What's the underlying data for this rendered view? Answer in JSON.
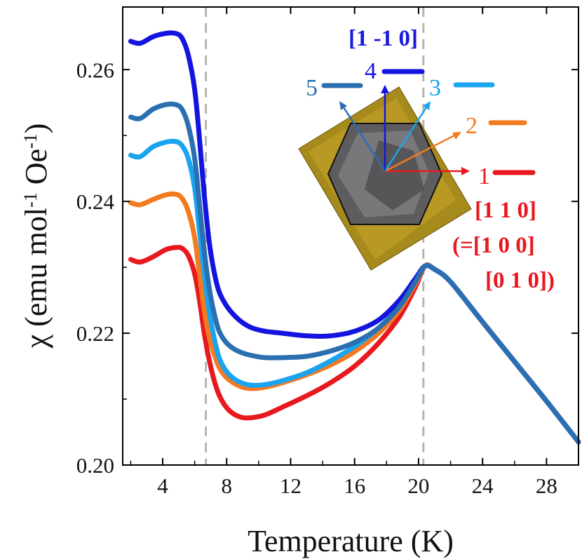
{
  "chart_data": {
    "type": "line",
    "xlabel": "Temperature (K)",
    "ylabel": {
      "prefix": "χ (emu mol",
      "sup1": "-1",
      "mid": " Oe",
      "sup2": "-1",
      "suffix": ")"
    },
    "xlim": [
      1.5,
      30
    ],
    "ylim": [
      0.2,
      0.2695
    ],
    "xticks": [
      4,
      8,
      12,
      16,
      20,
      24,
      28
    ],
    "xtick_labels": [
      "4",
      "8",
      "12",
      "16",
      "20",
      "24",
      "28"
    ],
    "yticks": [
      0.2,
      0.22,
      0.24,
      0.26
    ],
    "ytick_labels": [
      "0.20",
      "0.22",
      "0.24",
      "0.26"
    ],
    "vlines": [
      6.7,
      20.3
    ],
    "series": [
      {
        "name": "1",
        "color": "#e8181e",
        "x": [
          2.0,
          2.6,
          3.4,
          4.2,
          4.8,
          5.2,
          5.6,
          6.0,
          6.3,
          6.6,
          6.9,
          7.2,
          7.5,
          7.9,
          8.4,
          9.0,
          9.6,
          10.4,
          11.5,
          13.0,
          14.5,
          16.0,
          17.5,
          18.8,
          19.8,
          20.4,
          21.0,
          22.0,
          24.0,
          26.0,
          28.0,
          30.0
        ],
        "y": [
          0.2312,
          0.2308,
          0.2316,
          0.2327,
          0.233,
          0.2329,
          0.2318,
          0.229,
          0.225,
          0.22,
          0.216,
          0.213,
          0.2108,
          0.209,
          0.2078,
          0.2072,
          0.2072,
          0.2076,
          0.2088,
          0.2105,
          0.2125,
          0.215,
          0.2185,
          0.2225,
          0.227,
          0.2302,
          0.2297,
          0.2278,
          0.2217,
          0.2157,
          0.2097,
          0.2035
        ]
      },
      {
        "name": "2",
        "color": "#f47a20",
        "x": [
          2.0,
          2.6,
          3.4,
          4.2,
          4.8,
          5.2,
          5.6,
          6.0,
          6.3,
          6.6,
          6.9,
          7.2,
          7.5,
          7.9,
          8.4,
          9.0,
          9.6,
          10.4,
          11.5,
          13.0,
          14.5,
          16.0,
          17.5,
          18.8,
          19.8,
          20.4,
          21.0,
          22.0,
          24.0,
          26.0,
          28.0,
          30.0
        ],
        "y": [
          0.2398,
          0.2395,
          0.2403,
          0.241,
          0.2411,
          0.2405,
          0.2385,
          0.2345,
          0.229,
          0.2235,
          0.2195,
          0.217,
          0.215,
          0.2135,
          0.2125,
          0.2118,
          0.2116,
          0.2118,
          0.2125,
          0.2137,
          0.2152,
          0.2172,
          0.22,
          0.2235,
          0.2275,
          0.2302,
          0.2297,
          0.2278,
          0.2217,
          0.2157,
          0.2097,
          0.2035
        ]
      },
      {
        "name": "3",
        "color": "#1aa3ef",
        "x": [
          2.0,
          2.6,
          3.4,
          4.2,
          4.8,
          5.2,
          5.6,
          6.0,
          6.3,
          6.6,
          6.9,
          7.2,
          7.5,
          7.9,
          8.4,
          9.0,
          9.6,
          10.4,
          11.5,
          13.0,
          14.5,
          16.0,
          17.5,
          18.8,
          19.8,
          20.4,
          21.0,
          22.0,
          24.0,
          26.0,
          28.0,
          30.0
        ],
        "y": [
          0.247,
          0.2468,
          0.2483,
          0.249,
          0.2491,
          0.2485,
          0.2465,
          0.242,
          0.2355,
          0.229,
          0.2235,
          0.2195,
          0.2165,
          0.2145,
          0.2132,
          0.2124,
          0.2121,
          0.2122,
          0.2128,
          0.214,
          0.2158,
          0.218,
          0.2208,
          0.2242,
          0.228,
          0.2302,
          0.2297,
          0.2278,
          0.2217,
          0.2157,
          0.2097,
          0.2035
        ]
      },
      {
        "name": "4",
        "color": "#1414e0",
        "x": [
          2.0,
          2.6,
          3.4,
          4.2,
          4.8,
          5.2,
          5.6,
          6.0,
          6.3,
          6.6,
          6.9,
          7.2,
          7.5,
          7.9,
          8.4,
          9.0,
          9.6,
          10.4,
          11.5,
          13.0,
          14.5,
          16.0,
          17.5,
          18.8,
          19.8,
          20.4,
          21.0,
          22.0,
          24.0,
          26.0,
          28.0,
          30.0
        ],
        "y": [
          0.2643,
          0.264,
          0.265,
          0.2655,
          0.2655,
          0.2648,
          0.2622,
          0.257,
          0.2495,
          0.241,
          0.234,
          0.2295,
          0.2265,
          0.2245,
          0.2229,
          0.2216,
          0.2208,
          0.2203,
          0.22,
          0.2196,
          0.2196,
          0.2203,
          0.222,
          0.225,
          0.2283,
          0.2302,
          0.2297,
          0.2278,
          0.2217,
          0.2157,
          0.2097,
          0.2035
        ]
      },
      {
        "name": "5",
        "color": "#2a6fb0",
        "x": [
          2.0,
          2.6,
          3.4,
          4.2,
          4.8,
          5.2,
          5.6,
          6.0,
          6.3,
          6.6,
          6.9,
          7.2,
          7.5,
          7.9,
          8.4,
          9.0,
          9.6,
          10.4,
          11.5,
          13.0,
          14.5,
          16.0,
          17.5,
          18.8,
          19.8,
          20.4,
          21.0,
          22.0,
          24.0,
          26.0,
          28.0,
          30.0
        ],
        "y": [
          0.2528,
          0.2526,
          0.254,
          0.2547,
          0.2547,
          0.254,
          0.2515,
          0.2465,
          0.2395,
          0.2325,
          0.227,
          0.2232,
          0.2205,
          0.2188,
          0.2177,
          0.217,
          0.2166,
          0.2163,
          0.2163,
          0.2165,
          0.2173,
          0.2186,
          0.2208,
          0.224,
          0.2278,
          0.2302,
          0.2297,
          0.2278,
          0.2217,
          0.2157,
          0.2097,
          0.2035
        ]
      }
    ],
    "legend": {
      "placement": "upper-right",
      "entries": [
        "1",
        "2",
        "3",
        "4",
        "5"
      ]
    },
    "annotations": {
      "dir_perp": "[1 -1 0]",
      "dir_110": "[1 1 0]",
      "dir_100_line": "(=[1 0 0]",
      "dir_010_line": "[0 1 0])"
    },
    "colors": {
      "axis": "#000000",
      "vline": "#b5b5b0",
      "dir_perp": "#1a1adf",
      "dir_110": "#e8181e"
    }
  }
}
